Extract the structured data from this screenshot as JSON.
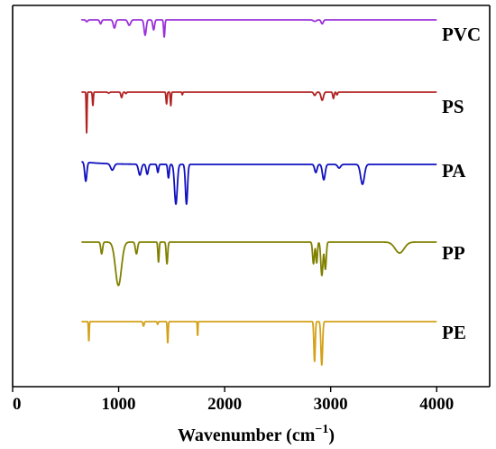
{
  "chart_data": {
    "type": "line",
    "title": "",
    "xlabel_main": "Wavenumber (cm",
    "xlabel_sup": "−1",
    "xlabel_close": ")",
    "ylabel": "",
    "xlim": [
      0,
      4500
    ],
    "xticks": [
      0,
      1000,
      2000,
      3000,
      4000
    ],
    "grid": false,
    "legend": "series labels placed at right end of each trace",
    "series": [
      {
        "name": "PVC",
        "color": "#9b30d9",
        "baseline_rank": 0,
        "features": [
          [
            650,
            0.02,
            0
          ],
          [
            700,
            0.1,
            12
          ],
          [
            830,
            0.22,
            12
          ],
          [
            960,
            0.45,
            15
          ],
          [
            1100,
            0.3,
            18
          ],
          [
            1250,
            0.85,
            14
          ],
          [
            1330,
            0.55,
            12
          ],
          [
            1430,
            0.95,
            8
          ],
          [
            2850,
            0.08,
            20
          ],
          [
            2920,
            0.22,
            14
          ]
        ],
        "baseline_drift": 0.0
      },
      {
        "name": "PS",
        "color": "#b22222",
        "baseline_rank": 1,
        "features": [
          [
            698,
            2.25,
            5
          ],
          [
            757,
            0.75,
            6
          ],
          [
            906,
            0.05,
            12
          ],
          [
            1028,
            0.3,
            10
          ],
          [
            1069,
            0.08,
            8
          ],
          [
            1452,
            0.65,
            7
          ],
          [
            1492,
            0.75,
            6
          ],
          [
            1601,
            0.15,
            5
          ],
          [
            2850,
            0.18,
            14
          ],
          [
            2920,
            0.45,
            16
          ],
          [
            3026,
            0.35,
            9
          ],
          [
            3060,
            0.15,
            8
          ]
        ],
        "baseline_drift": 0.0
      },
      {
        "name": "PA",
        "color": "#1010c0",
        "baseline_rank": 2,
        "features": [
          [
            690,
            1.05,
            14
          ],
          [
            940,
            0.35,
            22
          ],
          [
            1200,
            0.6,
            18
          ],
          [
            1270,
            0.55,
            14
          ],
          [
            1370,
            0.45,
            10
          ],
          [
            1470,
            0.75,
            10
          ],
          [
            1540,
            2.2,
            18
          ],
          [
            1640,
            2.2,
            14
          ],
          [
            2860,
            0.45,
            16
          ],
          [
            2935,
            0.85,
            18
          ],
          [
            3080,
            0.2,
            20
          ],
          [
            3300,
            1.1,
            25
          ]
        ],
        "baseline_drift": -0.15
      },
      {
        "name": "PP",
        "color": "#808000",
        "baseline_rank": 3,
        "features": [
          [
            840,
            0.65,
            12
          ],
          [
            998,
            2.4,
            40
          ],
          [
            1168,
            0.65,
            14
          ],
          [
            1376,
            1.1,
            8
          ],
          [
            1456,
            1.2,
            10
          ],
          [
            2838,
            1.2,
            12
          ],
          [
            2868,
            1.15,
            10
          ],
          [
            2917,
            1.85,
            14
          ],
          [
            2950,
            1.5,
            12
          ],
          [
            3650,
            0.6,
            60
          ]
        ],
        "baseline_drift": 0.0
      },
      {
        "name": "PE",
        "color": "#d4a017",
        "baseline_rank": 4,
        "features": [
          [
            719,
            1.1,
            5
          ],
          [
            1235,
            0.25,
            8
          ],
          [
            1368,
            0.15,
            6
          ],
          [
            1463,
            1.2,
            6
          ],
          [
            1745,
            0.8,
            4
          ],
          [
            2848,
            2.2,
            9
          ],
          [
            2916,
            2.4,
            11
          ]
        ],
        "baseline_drift": 0.0
      }
    ]
  }
}
